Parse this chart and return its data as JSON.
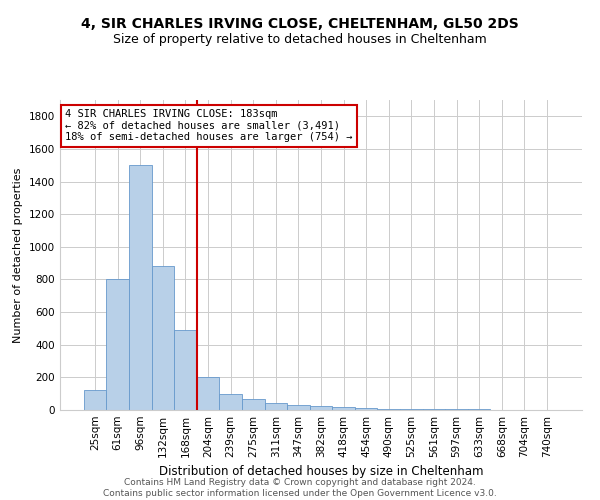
{
  "title": "4, SIR CHARLES IRVING CLOSE, CHELTENHAM, GL50 2DS",
  "subtitle": "Size of property relative to detached houses in Cheltenham",
  "xlabel": "Distribution of detached houses by size in Cheltenham",
  "ylabel": "Number of detached properties",
  "categories": [
    "25sqm",
    "61sqm",
    "96sqm",
    "132sqm",
    "168sqm",
    "204sqm",
    "239sqm",
    "275sqm",
    "311sqm",
    "347sqm",
    "382sqm",
    "418sqm",
    "454sqm",
    "490sqm",
    "525sqm",
    "561sqm",
    "597sqm",
    "633sqm",
    "668sqm",
    "704sqm",
    "740sqm"
  ],
  "values": [
    120,
    800,
    1500,
    880,
    490,
    200,
    100,
    65,
    45,
    30,
    25,
    20,
    10,
    8,
    6,
    5,
    4,
    4,
    3,
    3,
    3
  ],
  "bar_color": "#b8d0e8",
  "bar_edge_color": "#6699cc",
  "vline_x": 4.5,
  "vline_color": "#cc0000",
  "annotation_text": "4 SIR CHARLES IRVING CLOSE: 183sqm\n← 82% of detached houses are smaller (3,491)\n18% of semi-detached houses are larger (754) →",
  "annotation_box_color": "#ffffff",
  "annotation_box_edge": "#cc0000",
  "ylim": [
    0,
    1900
  ],
  "yticks": [
    0,
    200,
    400,
    600,
    800,
    1000,
    1200,
    1400,
    1600,
    1800
  ],
  "background_color": "#ffffff",
  "grid_color": "#cccccc",
  "footer": "Contains HM Land Registry data © Crown copyright and database right 2024.\nContains public sector information licensed under the Open Government Licence v3.0.",
  "title_fontsize": 10,
  "subtitle_fontsize": 9,
  "xlabel_fontsize": 8.5,
  "ylabel_fontsize": 8,
  "tick_fontsize": 7.5,
  "annotation_fontsize": 7.5,
  "footer_fontsize": 6.5
}
